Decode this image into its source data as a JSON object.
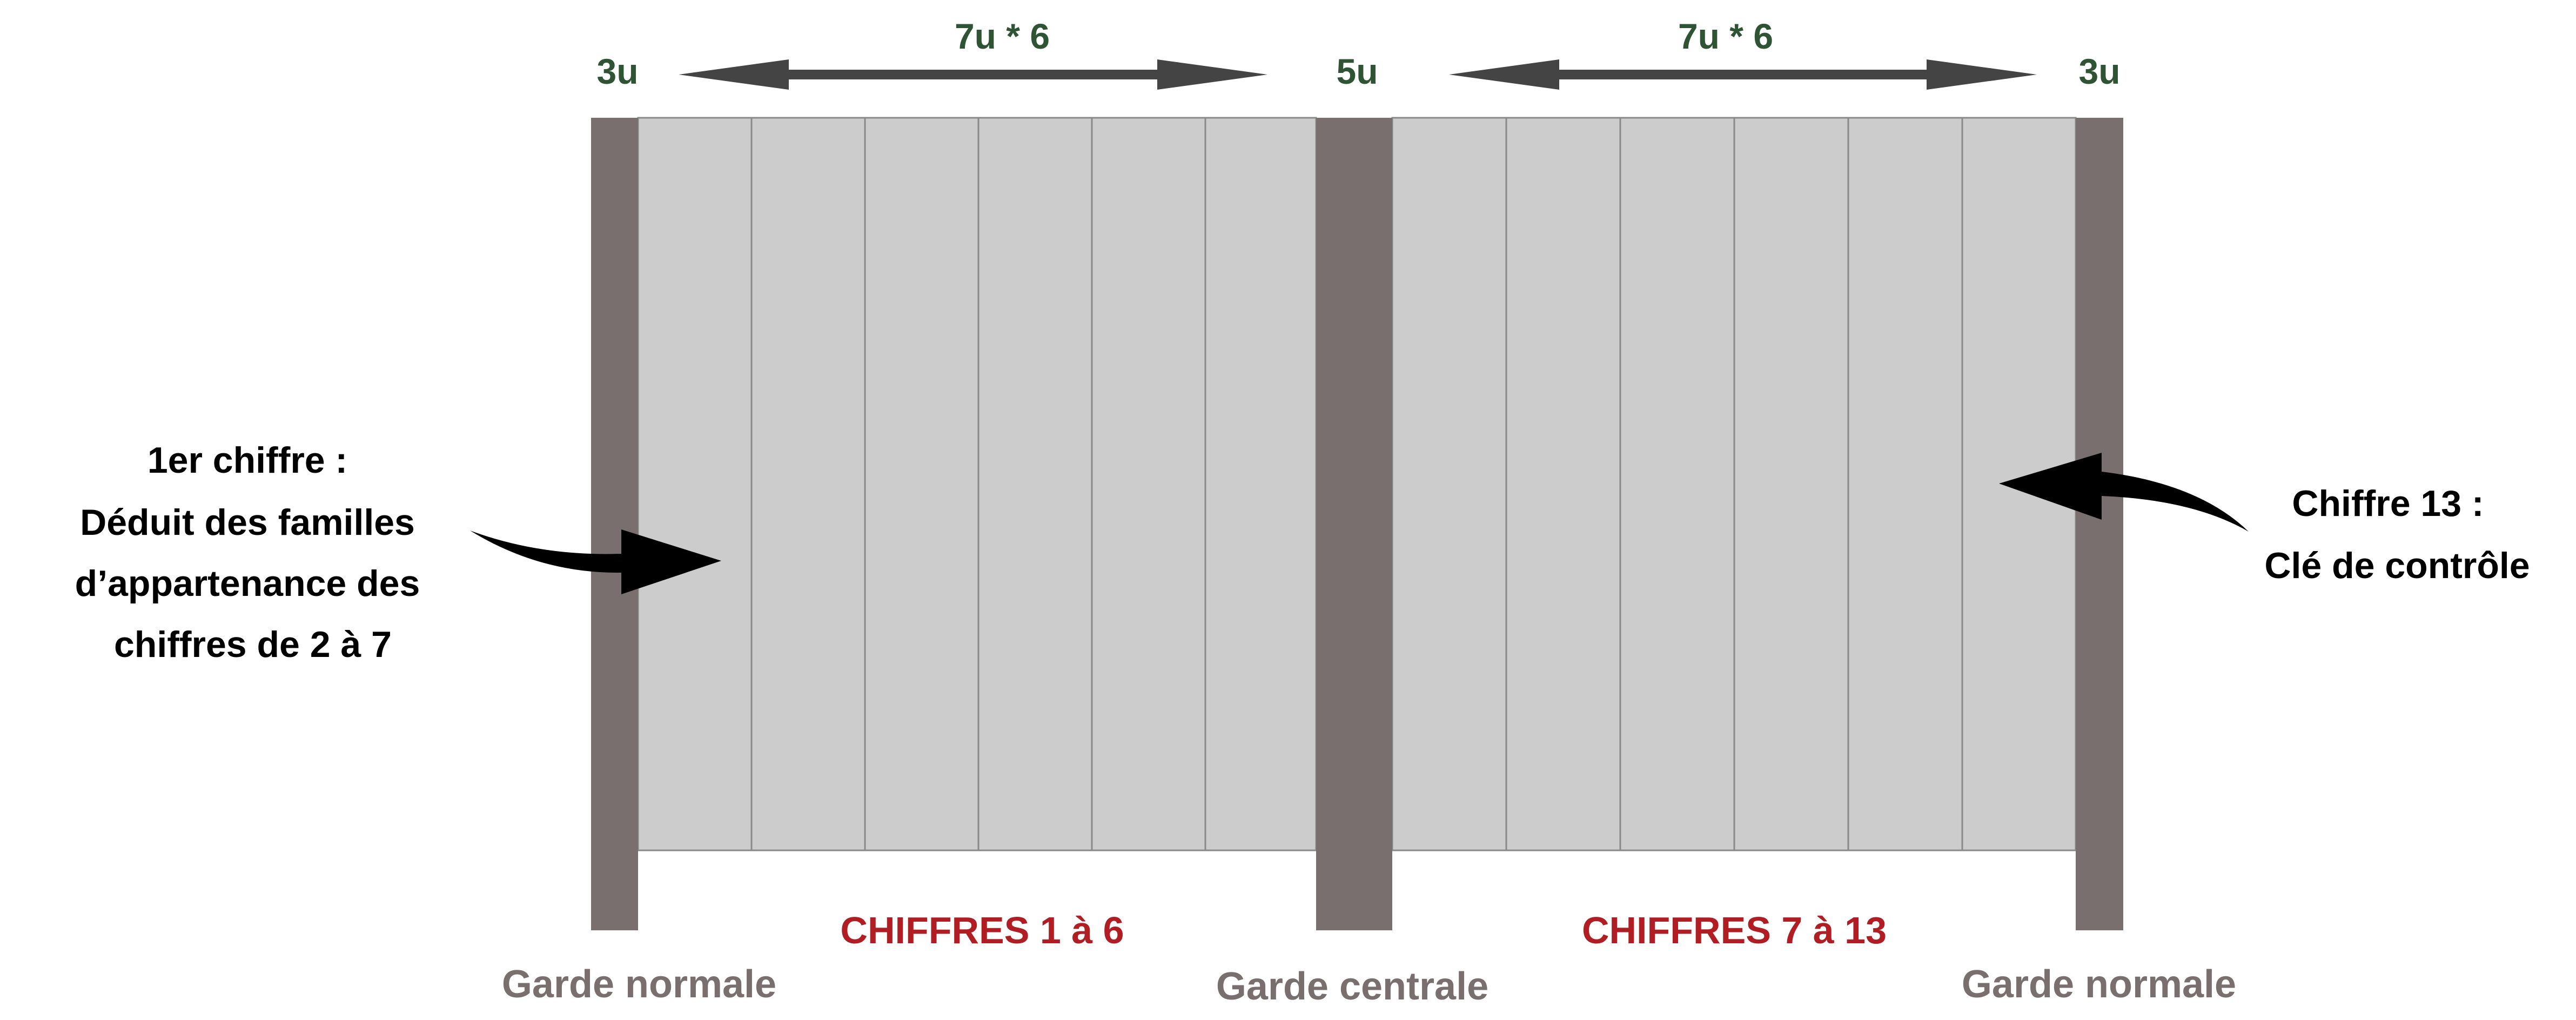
{
  "dimensions": {
    "left_guard": "3u",
    "left_digits": "7u * 6",
    "center_guard": "5u",
    "right_digits": "7u * 6",
    "right_guard": "3u"
  },
  "sections": {
    "left": "CHIFFRES 1 à 6",
    "right": "CHIFFRES 7 à 13"
  },
  "guards": {
    "left": "Garde normale",
    "center": "Garde centrale",
    "right": "Garde normale"
  },
  "annotations": {
    "left_lines": [
      "1er chiffre :",
      "Déduit des familles",
      "d’appartenance des",
      "chiffres de 2 à 7"
    ],
    "right_lines": [
      "Chiffre 13 :",
      "Clé de contrôle"
    ]
  },
  "colors": {
    "guard_bar": "#7a6f6f",
    "digit_bar": "#cccccc",
    "dimension_text": "#2e5434",
    "section_text": "#b01e23",
    "guard_text": "#7a6f6f",
    "annotation_text": "#000000",
    "arrow": "#444444"
  }
}
